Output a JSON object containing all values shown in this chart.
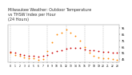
{
  "title": "Milwaukee Weather: Outdoor Temperature\nvs THSW Index per Hour\n(24 Hours)",
  "title_fontsize": 3.5,
  "hours": [
    0,
    1,
    2,
    3,
    4,
    5,
    6,
    7,
    8,
    9,
    10,
    11,
    12,
    13,
    14,
    15,
    16,
    17,
    18,
    19,
    20,
    21,
    22,
    23
  ],
  "temp": [
    57,
    55,
    53,
    52,
    51,
    50,
    49,
    50,
    52,
    55,
    58,
    60,
    62,
    63,
    63,
    63,
    61,
    60,
    59,
    58,
    57,
    57,
    56,
    55
  ],
  "thsw": [
    55,
    52,
    50,
    48,
    47,
    46,
    44,
    45,
    58,
    72,
    85,
    88,
    92,
    88,
    82,
    75,
    65,
    55,
    50,
    48,
    47,
    46,
    45,
    44
  ],
  "temp_color": "#cc0000",
  "thsw_color": "#ff8800",
  "thsw_color2": "#ffaa00",
  "background_color": "#ffffff",
  "grid_color": "#999999",
  "ylim": [
    40,
    100
  ],
  "yticks": [
    45,
    55,
    65,
    75,
    85,
    95
  ],
  "ytick_labels": [
    "45",
    "55",
    "65",
    "75",
    "85",
    "95"
  ],
  "xlim": [
    -0.5,
    23.5
  ],
  "xticks": [
    0,
    1,
    2,
    3,
    4,
    5,
    6,
    7,
    8,
    9,
    10,
    11,
    12,
    13,
    14,
    15,
    16,
    17,
    18,
    19,
    20,
    21,
    22,
    23
  ],
  "xtick_labels": [
    "0",
    "1",
    "2",
    "3",
    "4",
    "5",
    "6",
    "7",
    "8",
    "9",
    "10",
    "11",
    "12",
    "13",
    "14",
    "15",
    "16",
    "17",
    "18",
    "19",
    "20",
    "21",
    "22",
    "23"
  ],
  "vgrid_positions": [
    0,
    4,
    8,
    12,
    16,
    20
  ],
  "marker_size": 1.8,
  "dot_only": true
}
